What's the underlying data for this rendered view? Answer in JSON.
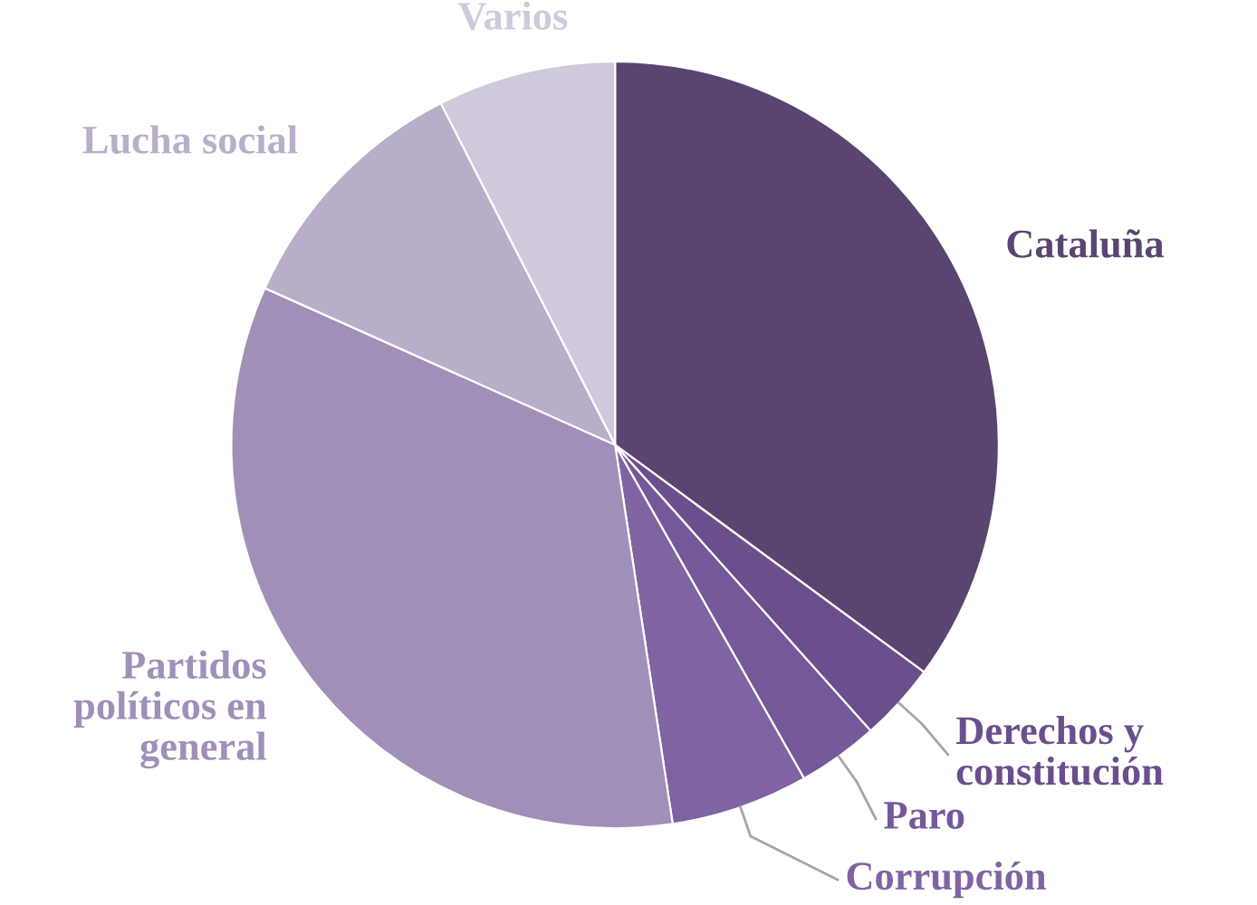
{
  "chart_data": {
    "type": "pie",
    "categories": [
      "Cataluña",
      "Derechos y\nconstitución",
      "Paro",
      "Corrupción",
      "Partidos\npolíticos en\ngeneral",
      "Lucha social",
      "Varios"
    ],
    "values": [
      35.1,
      3.3,
      3.4,
      5.8,
      34.1,
      10.8,
      7.5
    ],
    "colors": [
      "#5a4472",
      "#6a4f8c",
      "#74589a",
      "#8063a3",
      "#a08fb8",
      "#b8aec9",
      "#d0c9db"
    ]
  }
}
